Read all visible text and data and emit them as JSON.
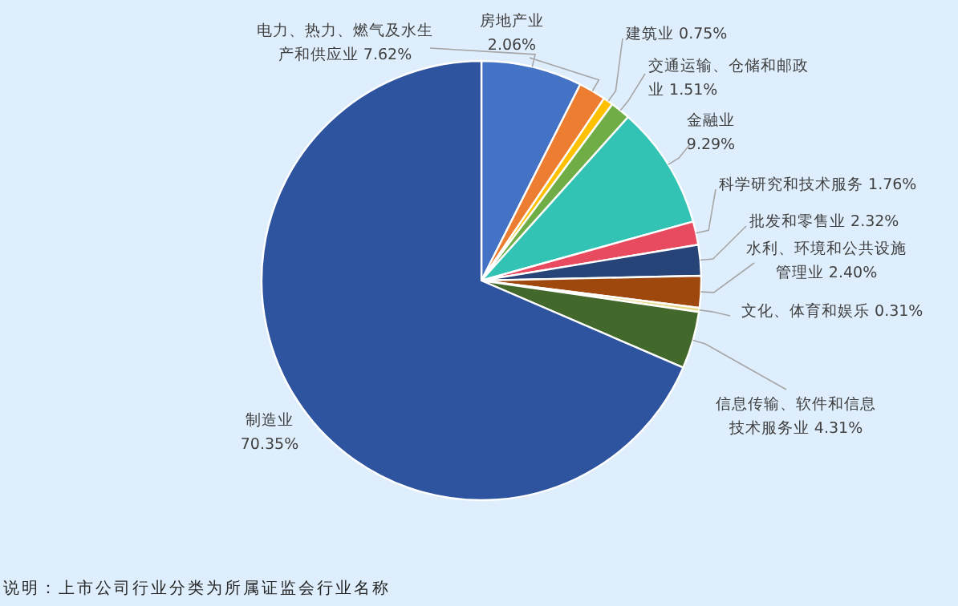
{
  "chart_data": {
    "type": "pie",
    "categories": [
      "电力、热力、燃气及水生产和供应业",
      "房地产业",
      "建筑业",
      "交通运输、仓储和邮政业",
      "金融业",
      "科学研究和技术服务",
      "批发和零售业",
      "水利、环境和公共设施管理业",
      "文化、体育和娱乐",
      "信息传输、软件和信息技术服务业",
      "制造业"
    ],
    "values": [
      7.62,
      2.06,
      0.75,
      1.51,
      9.29,
      1.76,
      2.32,
      2.4,
      0.31,
      4.31,
      70.35
    ],
    "value_labels": [
      "7.62%",
      "2.06%",
      "0.75%",
      "1.51%",
      "9.29%",
      "1.76%",
      "2.32%",
      "2.40%",
      "0.31%",
      "4.31%",
      "70.35%"
    ],
    "colors": [
      "#4472c4",
      "#ed7d31",
      "#ffc000",
      "#70ad47",
      "#33c3b4",
      "#e84a5f",
      "#264478",
      "#9e480e",
      "#e8d98a",
      "#43682b",
      "#2e54a0"
    ],
    "annotations": [
      "说明：上市公司行业分类为所属证监会行业名称"
    ]
  }
}
